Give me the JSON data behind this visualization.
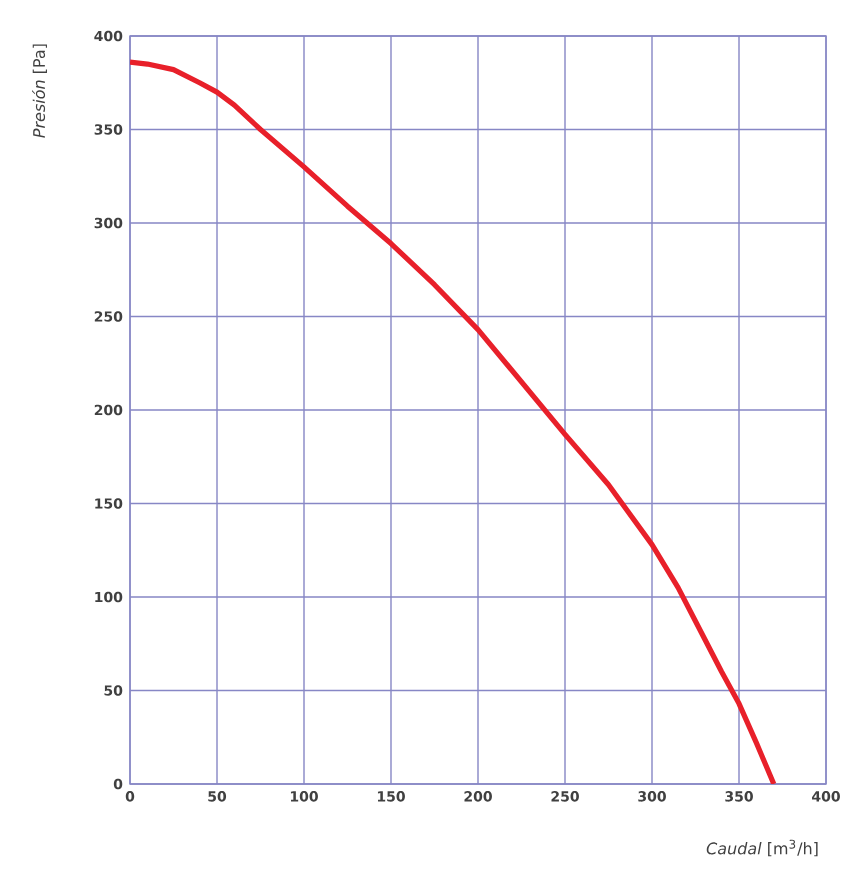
{
  "chart_data": {
    "type": "line",
    "xlabel": "*Caudal* [m$^{3}$/h]",
    "ylabel": "*Presión* [Pa]",
    "x": [
      0,
      10,
      25,
      40,
      50,
      60,
      75,
      100,
      125,
      150,
      175,
      200,
      225,
      250,
      275,
      300,
      315,
      325,
      340,
      350,
      360,
      370
    ],
    "series": [
      {
        "color": "#e8202a",
        "values": [
          386,
          385,
          382,
          375,
          370,
          363,
          350,
          330,
          309,
          289,
          267,
          243,
          215,
          187,
          160,
          128,
          105,
          87,
          60,
          43,
          22,
          0
        ]
      }
    ],
    "xlim": [
      0,
      400
    ],
    "ylim": [
      0,
      400
    ],
    "xticks": [
      0,
      50,
      100,
      150,
      200,
      250,
      300,
      350,
      400
    ],
    "yticks": [
      0,
      50,
      100,
      150,
      200,
      250,
      300,
      350,
      400
    ],
    "grid": true,
    "line_style": "solid",
    "marker": "none"
  }
}
